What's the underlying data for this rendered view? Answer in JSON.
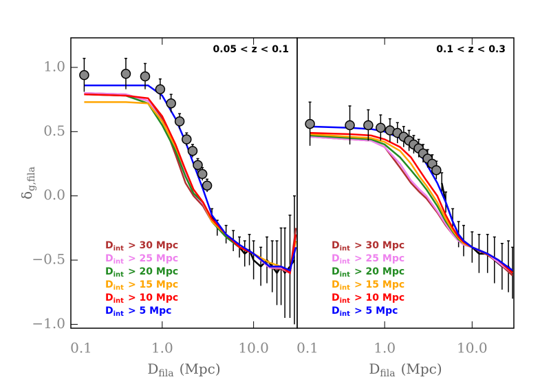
{
  "chart_data": [
    {
      "type": "line",
      "annotation": "0.05 < z < 0.1",
      "xlog": true,
      "xlim": [
        0.1,
        30
      ],
      "ylim": [
        -1.03,
        1.23
      ],
      "xticks": [
        0.1,
        {
          "value": 1,
          "label": "1.0"
        },
        {
          "value": 10,
          "label": "10.0"
        }
      ],
      "yticks": [
        {
          "value": -1,
          "label": "−1.0"
        },
        {
          "value": -0.5,
          "label": "−0.5"
        },
        {
          "value": 0,
          "label": "0.0"
        },
        {
          "value": 0.5,
          "label": "0.5"
        },
        {
          "value": 1,
          "label": "1.0"
        }
      ],
      "x_label": "D",
      "x_label_sub": "fila",
      "x_label_unit": "(Mpc)",
      "y_label": "δ",
      "y_label_sub": "g,fila",
      "legend_var": "D",
      "legend_sub": "int",
      "series": [
        {
          "color": "#000000",
          "x": [
            3.5,
            4,
            5,
            6,
            7,
            8,
            9,
            10,
            12,
            14,
            16,
            18,
            20,
            22,
            25,
            28
          ],
          "values": [
            -0.15,
            -0.25,
            -0.3,
            -0.35,
            -0.4,
            -0.45,
            -0.42,
            -0.5,
            -0.55,
            -0.5,
            -0.55,
            -0.6,
            -0.55,
            -0.6,
            -0.55,
            -0.5
          ],
          "errors": [
            0.05,
            0.06,
            0.07,
            0.08,
            0.08,
            0.1,
            0.12,
            0.15,
            0.15,
            0.18,
            0.2,
            0.25,
            0.3,
            0.35,
            0.4,
            0.5
          ]
        },
        {
          "name": "> 30 Mpc",
          "color": "#b03030",
          "x": [
            0.14,
            0.4,
            0.7,
            1.0,
            1.4,
            1.8,
            2.2,
            2.8,
            3.5,
            5,
            7,
            10,
            15,
            20,
            25,
            29
          ],
          "values": [
            0.8,
            0.79,
            0.74,
            0.6,
            0.32,
            0.1,
            0,
            -0.08,
            -0.2,
            -0.32,
            -0.4,
            -0.45,
            -0.56,
            -0.57,
            -0.6,
            -0.25
          ]
        },
        {
          "name": "> 25 Mpc",
          "color": "#ee82ee",
          "x": [
            0.14,
            0.4,
            0.7,
            1.0,
            1.4,
            1.8,
            2.2,
            2.8,
            3.5,
            5,
            7,
            10,
            15,
            20,
            25,
            29
          ],
          "values": [
            0.8,
            0.79,
            0.74,
            0.58,
            0.36,
            0.16,
            0.02,
            -0.06,
            -0.2,
            -0.32,
            -0.4,
            -0.45,
            -0.56,
            -0.56,
            -0.6,
            -0.3
          ]
        },
        {
          "name": "> 20 Mpc",
          "color": "#228b22",
          "x": [
            0.14,
            0.4,
            0.7,
            1.0,
            1.4,
            1.8,
            2.2,
            2.8,
            3.5,
            5,
            7,
            10,
            15,
            20,
            25,
            29
          ],
          "values": [
            0.79,
            0.78,
            0.72,
            0.55,
            0.35,
            0.15,
            0.02,
            -0.05,
            -0.2,
            -0.32,
            -0.4,
            -0.45,
            -0.55,
            -0.55,
            -0.6,
            -0.3
          ]
        },
        {
          "name": "> 15 Mpc",
          "color": "#ffa500",
          "x": [
            0.14,
            0.4,
            0.7,
            1.0,
            1.4,
            1.8,
            2.2,
            2.8,
            3.5,
            5,
            7,
            10,
            15,
            20,
            25,
            29
          ],
          "values": [
            0.73,
            0.73,
            0.72,
            0.58,
            0.38,
            0.2,
            0.05,
            -0.05,
            -0.2,
            -0.3,
            -0.38,
            -0.45,
            -0.52,
            -0.55,
            -0.58,
            -0.35
          ]
        },
        {
          "name": "> 10 Mpc",
          "color": "#ff0000",
          "x": [
            0.14,
            0.4,
            0.7,
            1.0,
            1.4,
            1.8,
            2.2,
            2.8,
            3.5,
            5,
            7,
            10,
            15,
            20,
            25,
            29
          ],
          "values": [
            0.79,
            0.78,
            0.76,
            0.62,
            0.4,
            0.2,
            0.05,
            -0.05,
            -0.18,
            -0.3,
            -0.4,
            -0.45,
            -0.55,
            -0.55,
            -0.6,
            -0.3
          ]
        },
        {
          "name": "> 5 Mpc",
          "color": "#0000ff",
          "x": [
            0.14,
            0.4,
            0.7,
            1.0,
            1.4,
            1.8,
            2.2,
            2.8,
            3.5,
            5,
            7,
            10,
            15,
            20,
            25,
            29
          ],
          "values": [
            0.86,
            0.86,
            0.86,
            0.78,
            0.6,
            0.42,
            0.25,
            0.05,
            -0.15,
            -0.3,
            -0.38,
            -0.45,
            -0.55,
            -0.55,
            -0.58,
            -0.4
          ]
        },
        {
          "color": "#888888",
          "marker": "circle",
          "x": [
            0.14,
            0.4,
            0.65,
            0.95,
            1.25,
            1.55,
            1.85,
            2.15,
            2.45,
            2.75,
            3.1
          ],
          "values": [
            0.94,
            0.95,
            0.93,
            0.83,
            0.72,
            0.58,
            0.44,
            0.35,
            0.24,
            0.17,
            0.08
          ],
          "errors": [
            0.13,
            0.12,
            0.1,
            0.08,
            0.07,
            0.06,
            0.05,
            0.05,
            0.05,
            0.05,
            0.05
          ]
        }
      ]
    },
    {
      "type": "line",
      "annotation": "0.1 < z < 0.3",
      "xlog": true,
      "xlim": [
        0.1,
        30
      ],
      "ylim": [
        -1.03,
        1.23
      ],
      "xticks": [
        0.1,
        {
          "value": 1,
          "label": "1.0"
        },
        {
          "value": 10,
          "label": "10.0"
        }
      ],
      "x_label": "D",
      "x_label_sub": "fila",
      "x_label_unit": "(Mpc)",
      "legend_var": "D",
      "legend_sub": "int",
      "series": [
        {
          "color": "#000000",
          "x": [
            4.5,
            5,
            6,
            7,
            8,
            10,
            12,
            15,
            18,
            22,
            26,
            29
          ],
          "values": [
            0.1,
            -0.05,
            -0.2,
            -0.3,
            -0.35,
            -0.4,
            -0.45,
            -0.45,
            -0.5,
            -0.55,
            -0.55,
            -0.6
          ],
          "errors": [
            0.08,
            0.08,
            0.1,
            0.1,
            0.12,
            0.12,
            0.15,
            0.15,
            0.18,
            0.18,
            0.2,
            0.2
          ]
        },
        {
          "name": "> 30 Mpc",
          "color": "#b03030",
          "x": [
            0.14,
            0.4,
            0.7,
            1.0,
            1.5,
            2,
            2.5,
            3,
            4,
            5,
            6,
            7,
            8,
            10,
            15,
            20,
            29
          ],
          "values": [
            0.46,
            0.44,
            0.43,
            0.38,
            0.22,
            0.1,
            0.03,
            -0.02,
            -0.13,
            -0.23,
            -0.3,
            -0.35,
            -0.38,
            -0.4,
            -0.46,
            -0.52,
            -0.62
          ]
        },
        {
          "name": "> 25 Mpc",
          "color": "#ee82ee",
          "x": [
            0.14,
            0.4,
            0.7,
            1.0,
            1.5,
            2,
            2.5,
            3,
            4,
            5,
            6,
            7,
            8,
            10,
            15,
            20,
            29
          ],
          "values": [
            0.46,
            0.44,
            0.43,
            0.38,
            0.25,
            0.12,
            0.05,
            0,
            -0.12,
            -0.22,
            -0.3,
            -0.35,
            -0.38,
            -0.4,
            -0.45,
            -0.52,
            -0.6
          ]
        },
        {
          "name": "> 20 Mpc",
          "color": "#228b22",
          "x": [
            0.14,
            0.4,
            0.7,
            1.0,
            1.5,
            2,
            2.5,
            3,
            4,
            5,
            6,
            7,
            8,
            10,
            15,
            20,
            29
          ],
          "values": [
            0.47,
            0.45,
            0.44,
            0.4,
            0.3,
            0.2,
            0.12,
            0.05,
            -0.08,
            -0.2,
            -0.28,
            -0.34,
            -0.37,
            -0.4,
            -0.45,
            -0.5,
            -0.6
          ]
        },
        {
          "name": "> 15 Mpc",
          "color": "#ffa500",
          "x": [
            0.14,
            0.4,
            0.7,
            1.0,
            1.5,
            2,
            2.5,
            3,
            4,
            5,
            6,
            7,
            8,
            10,
            15,
            20,
            29
          ],
          "values": [
            0.48,
            0.46,
            0.45,
            0.42,
            0.35,
            0.25,
            0.15,
            0.08,
            -0.05,
            -0.18,
            -0.27,
            -0.33,
            -0.37,
            -0.4,
            -0.45,
            -0.5,
            -0.6
          ]
        },
        {
          "name": "> 10 Mpc",
          "color": "#ff0000",
          "x": [
            0.14,
            0.4,
            0.7,
            1.0,
            1.5,
            2,
            2.5,
            3,
            4,
            5,
            6,
            7,
            8,
            10,
            15,
            20,
            29
          ],
          "values": [
            0.49,
            0.48,
            0.47,
            0.44,
            0.38,
            0.3,
            0.2,
            0.12,
            0,
            -0.15,
            -0.25,
            -0.32,
            -0.36,
            -0.4,
            -0.45,
            -0.5,
            -0.6
          ]
        },
        {
          "name": "> 5 Mpc",
          "color": "#0000ff",
          "x": [
            0.14,
            0.4,
            0.7,
            1.0,
            1.5,
            2,
            2.5,
            3,
            4,
            5,
            6,
            7,
            8,
            10,
            15,
            20,
            29
          ],
          "values": [
            0.54,
            0.53,
            0.52,
            0.5,
            0.45,
            0.4,
            0.33,
            0.25,
            0.1,
            -0.05,
            -0.2,
            -0.3,
            -0.35,
            -0.4,
            -0.45,
            -0.5,
            -0.58
          ]
        },
        {
          "color": "#888888",
          "marker": "circle",
          "x": [
            0.14,
            0.4,
            0.65,
            0.9,
            1.15,
            1.4,
            1.65,
            1.9,
            2.15,
            2.45,
            2.75,
            3.1,
            3.5,
            3.9
          ],
          "values": [
            0.56,
            0.55,
            0.55,
            0.53,
            0.51,
            0.49,
            0.46,
            0.43,
            0.4,
            0.37,
            0.33,
            0.29,
            0.25,
            0.2
          ],
          "errors": [
            0.17,
            0.15,
            0.12,
            0.1,
            0.09,
            0.08,
            0.08,
            0.08,
            0.07,
            0.07,
            0.07,
            0.07,
            0.07,
            0.07
          ]
        }
      ]
    }
  ]
}
